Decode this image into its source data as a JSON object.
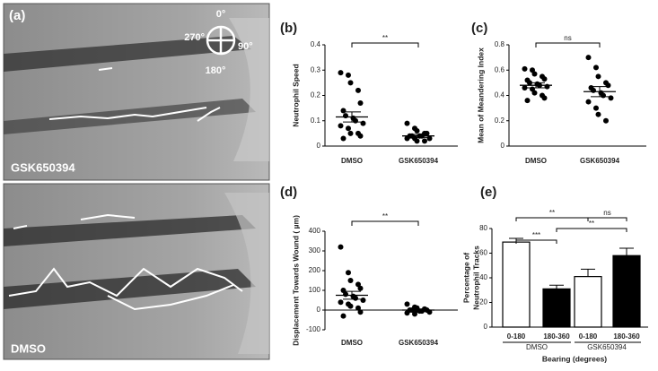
{
  "panel_a": {
    "label": "(a)",
    "top_image_label": "GSK650394",
    "bottom_image_label": "DMSO",
    "compass": [
      "0°",
      "90°",
      "180°",
      "270°"
    ]
  },
  "chart_data": [
    {
      "type": "dot-plot",
      "panel": "(b)",
      "ylabel": "Neutrophil Speed",
      "categories": [
        "DMSO",
        "GSK650394"
      ],
      "points": [
        [
          0.29,
          0.28,
          0.25,
          0.22,
          0.17,
          0.14,
          0.12,
          0.11,
          0.1,
          0.09,
          0.08,
          0.07,
          0.05,
          0.05,
          0.04,
          0.03
        ],
        [
          0.09,
          0.07,
          0.06,
          0.05,
          0.05,
          0.04,
          0.04,
          0.04,
          0.04,
          0.03,
          0.03,
          0.03,
          0.02,
          0.02
        ]
      ],
      "means": [
        0.115,
        0.04
      ],
      "errors": [
        0.02,
        0.006
      ],
      "ylim": [
        0,
        0.4
      ],
      "yticks": [
        0,
        0.1,
        0.2,
        0.3,
        0.4
      ],
      "bracket_label": "**"
    },
    {
      "type": "dot-plot",
      "panel": "(c)",
      "ylabel": "Mean of Meandering Index",
      "categories": [
        "DMSO",
        "GSK650394"
      ],
      "points": [
        [
          0.61,
          0.6,
          0.57,
          0.55,
          0.53,
          0.52,
          0.5,
          0.49,
          0.48,
          0.47,
          0.46,
          0.45,
          0.42,
          0.4,
          0.38,
          0.36
        ],
        [
          0.7,
          0.62,
          0.55,
          0.5,
          0.48,
          0.46,
          0.44,
          0.42,
          0.4,
          0.38,
          0.35,
          0.3,
          0.25,
          0.2
        ]
      ],
      "means": [
        0.48,
        0.43
      ],
      "errors": [
        0.02,
        0.04
      ],
      "ylim": [
        0,
        0.8
      ],
      "yticks": [
        0,
        0.2,
        0.4,
        0.6,
        0.8
      ],
      "bracket_label": "ns"
    },
    {
      "type": "dot-plot",
      "panel": "(d)",
      "ylabel": "Displacement Towards Wound ( µm)",
      "categories": [
        "DMSO",
        "GSK650394"
      ],
      "points": [
        [
          320,
          190,
          150,
          130,
          110,
          100,
          80,
          70,
          60,
          50,
          40,
          30,
          20,
          10,
          -10,
          -30
        ],
        [
          30,
          15,
          10,
          5,
          0,
          0,
          0,
          -5,
          -5,
          -10,
          -15,
          -20,
          0,
          5
        ]
      ],
      "means": [
        75,
        0
      ],
      "errors": [
        20,
        5
      ],
      "ylim": [
        -100,
        400
      ],
      "yticks": [
        -100,
        0,
        100,
        200,
        300,
        400
      ],
      "bracket_label": "**"
    },
    {
      "type": "bar",
      "panel": "(e)",
      "ylabel": [
        "Percentage of",
        "Neutrophil Tracks"
      ],
      "xlabel": "Bearing (degrees)",
      "categories": [
        "0-180",
        "180-360",
        "0-180",
        "180-360"
      ],
      "groups": [
        "DMSO",
        "GSK650394"
      ],
      "values": [
        69,
        31,
        41,
        58
      ],
      "errors": [
        3,
        3,
        6,
        6
      ],
      "colors": [
        "#ffffff",
        "#000000",
        "#ffffff",
        "#000000"
      ],
      "ylim": [
        0,
        80
      ],
      "yticks": [
        0,
        20,
        40,
        60,
        80
      ],
      "brackets": [
        "***",
        "**",
        "**",
        "ns"
      ]
    }
  ]
}
